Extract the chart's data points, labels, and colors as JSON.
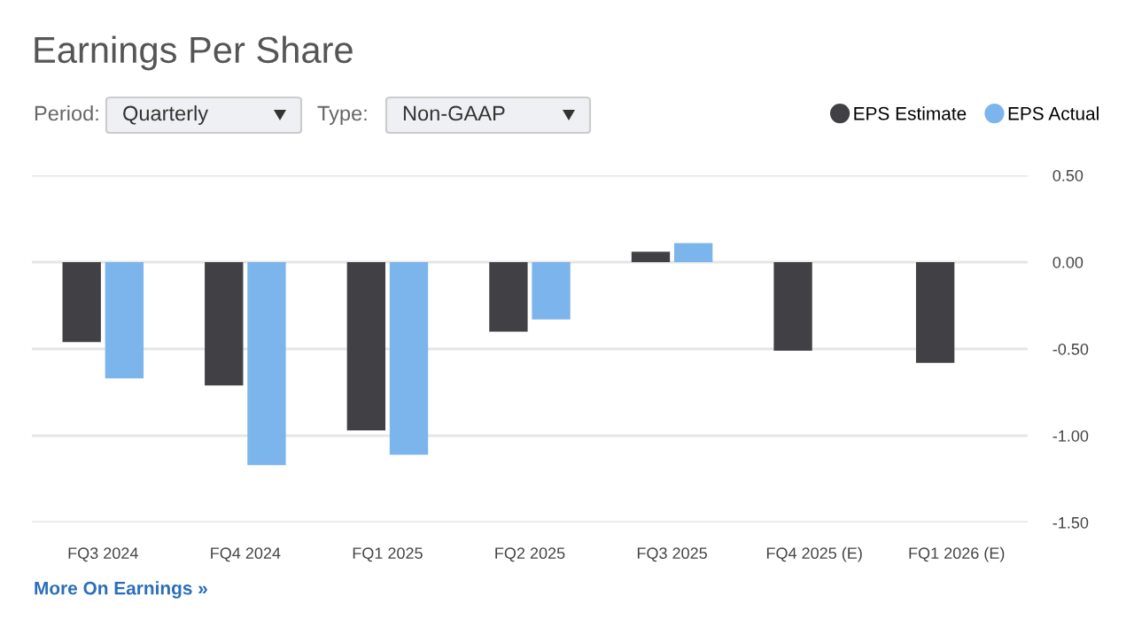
{
  "chart_data": {
    "type": "bar",
    "title": "Earnings Per Share",
    "categories": [
      "FQ3 2024",
      "FQ4 2024",
      "FQ1 2025",
      "FQ2 2025",
      "FQ3 2025",
      "FQ4 2025 (E)",
      "FQ1 2026 (E)"
    ],
    "series": [
      {
        "name": "EPS Estimate",
        "color": "#414045",
        "values": [
          -0.46,
          -0.71,
          -0.97,
          -0.4,
          0.06,
          -0.51,
          -0.58
        ]
      },
      {
        "name": "EPS Actual",
        "color": "#7cb5ec",
        "values": [
          -0.67,
          -1.17,
          -1.11,
          -0.33,
          0.11,
          null,
          null
        ]
      }
    ],
    "ylim": [
      -1.5,
      0.5
    ],
    "yticks": [
      {
        "value": 0.5,
        "label": "0.50"
      },
      {
        "value": 0,
        "label": "0.00"
      },
      {
        "value": -0.5,
        "label": "-0.50"
      },
      {
        "value": -1,
        "label": "-1.00"
      },
      {
        "value": -1.5,
        "label": "-1.50"
      }
    ],
    "grid": "y",
    "legend": "top right",
    "annotations": [
      "Period:",
      "Quarterly",
      "Type:",
      "Non-GAAP",
      "More On Earnings »"
    ]
  }
}
